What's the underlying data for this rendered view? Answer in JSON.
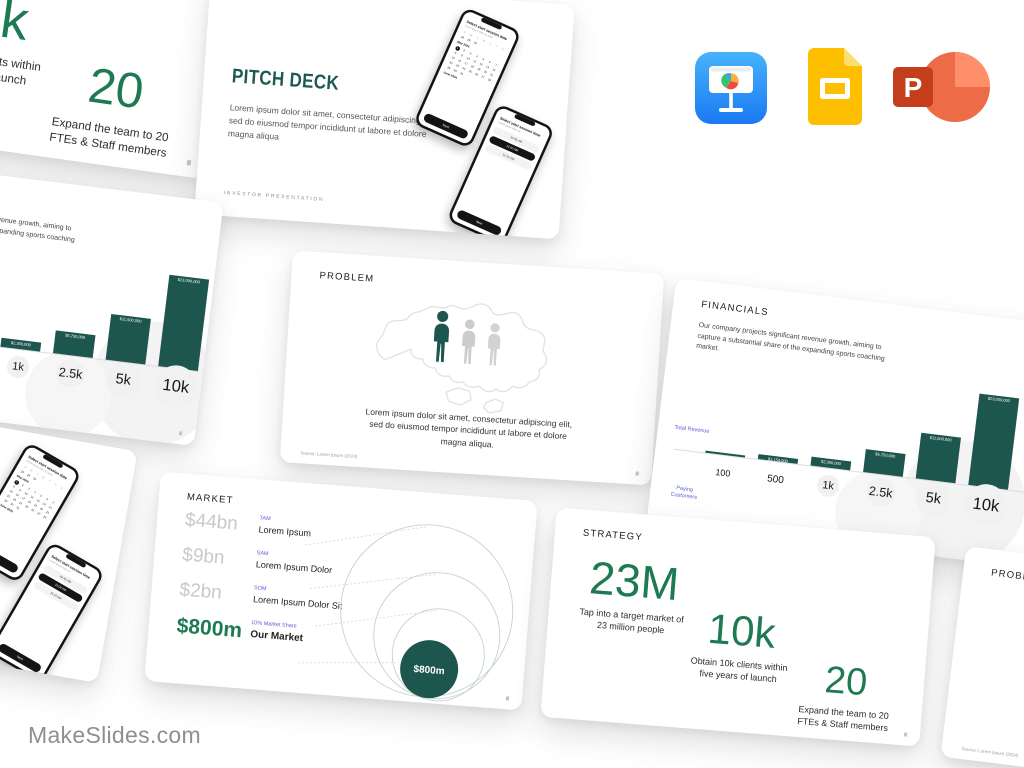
{
  "brand": {
    "name": "MakeSlides.com"
  },
  "app_icons": [
    {
      "name": "keynote-icon"
    },
    {
      "name": "google-slides-icon"
    },
    {
      "name": "powerpoint-icon",
      "letter": "P"
    }
  ],
  "slides": {
    "cover": {
      "title": "PITCH DECK",
      "body_lines": [
        "Lorem ipsum dolor sit amet, consectetur adipiscing elit,",
        "sed do eiusmod tempor incididunt ut labore et dolore",
        "magna aliqua"
      ],
      "footer": "INVESTOR PRESENTATION",
      "phone_date": {
        "title": "Select start session date",
        "subtitle": "Lorem ipsum dolor sit amet",
        "weekdays": [
          "S",
          "M",
          "T",
          "W",
          "T",
          "F",
          "S"
        ],
        "prev_days": [
          "28",
          "29",
          "30"
        ],
        "month1": "May 2024",
        "days_in_month": 31,
        "selected_day": 1,
        "month2": "June 2024",
        "next_button": "Next"
      },
      "phone_time": {
        "title": "Select start session time",
        "subtitle": "Lorem ipsum dolor sit",
        "times": [
          "10:45 AM",
          "11:00 AM",
          "11:15 AM"
        ],
        "selected_index": 1,
        "next_button": "Next"
      }
    },
    "problem": {
      "title": "PROBLEM",
      "body_lines": [
        "Lorem ipsum dolor sit amet, consectetur adipiscing elit,",
        "sed do eiusmod tempor incididunt ut labore et dolore",
        "magna aliqua."
      ],
      "source": "Source: Lorem Ipsum (2024)"
    },
    "financials": {
      "title": "FINANCIALS",
      "body_lines": [
        "Our company projects significant revenue growth, aiming to",
        "capture a substantial share of the expanding sports coaching",
        "market."
      ],
      "y_axis_label": "Total Revenue",
      "x_axis_label": "Paying Customers",
      "chart": {
        "type": "bar",
        "categories": [
          "100",
          "500",
          "1k",
          "2.5k",
          "5k",
          "10k"
        ],
        "values": [
          230000,
          1150000,
          2300000,
          5750000,
          11500000,
          23000000
        ],
        "value_labels": [
          "$230,000",
          "$1,150,000",
          "$2,300,000",
          "$5,750,000",
          "$11,500,000",
          "$23,000,000"
        ],
        "bar_color": "#1c564e"
      }
    },
    "market": {
      "title": "MARKET",
      "rows": [
        {
          "value": "$44bn",
          "tag": "TAM",
          "label": "Lorem Ipsum"
        },
        {
          "value": "$9bn",
          "tag": "SAM",
          "label": "Lorem Ipsum Dolor"
        },
        {
          "value": "$2bn",
          "tag": "SOM",
          "label": "Lorem Ipsum Dolor Sit"
        },
        {
          "value": "$800m",
          "tag": "10% Market Share",
          "label": "Our Market"
        }
      ],
      "bubble_label": "$800m"
    },
    "strategy": {
      "title": "STRATEGY",
      "stats": [
        {
          "value": "23M",
          "caption_lines": [
            "Tap into a target market of",
            "23 million people"
          ]
        },
        {
          "value": "10k",
          "caption_lines": [
            "Obtain 10k clients within",
            "five years of launch"
          ]
        },
        {
          "value": "20",
          "caption_lines": [
            "Expand the team to 20",
            "FTEs & Staff members"
          ]
        }
      ]
    }
  },
  "colors": {
    "teal": "#1c564e",
    "green": "#1e7a52",
    "purple": "#5f5fd4",
    "keynote_blue": "#2f9bf8",
    "gslides_yellow": "#fdbf00",
    "powerpoint_orange": "#ed6c47"
  }
}
